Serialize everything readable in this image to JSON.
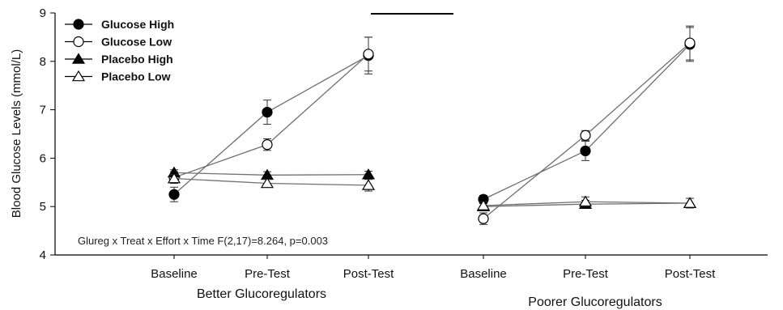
{
  "chart_data": {
    "type": "line",
    "ylabel": "Blood Glucose Levels (mmol/L)",
    "xlabel": "",
    "ylim": [
      4,
      9
    ],
    "yticks": [
      4,
      5,
      6,
      7,
      8,
      9
    ],
    "categories": [
      "Baseline",
      "Pre-Test",
      "Post-Test",
      "Baseline",
      "Pre-Test",
      "Post-Test"
    ],
    "groups": [
      {
        "label": "Better Glucoregulators",
        "categories": [
          0,
          1,
          2
        ]
      },
      {
        "label": "Poorer Glucoregulators",
        "categories": [
          3,
          4,
          5
        ]
      }
    ],
    "legend_position": "top-left",
    "annotation": "Glureg x Treat x Effort x Time F(2,17)=8.264, p=0.003",
    "series": [
      {
        "name": "Glucose High",
        "marker": "circle",
        "filled": true,
        "values": [
          5.25,
          6.95,
          8.12,
          5.15,
          6.15,
          8.35
        ],
        "errors": [
          0.15,
          0.25,
          0.38,
          0.08,
          0.2,
          0.35
        ]
      },
      {
        "name": "Glucose Low",
        "marker": "circle",
        "filled": false,
        "values": [
          5.6,
          6.28,
          8.15,
          4.75,
          6.47,
          8.38
        ],
        "errors": [
          0.12,
          0.12,
          0.35,
          0.12,
          0.1,
          0.35
        ]
      },
      {
        "name": "Placebo High",
        "marker": "triangle",
        "filled": true,
        "values": [
          5.7,
          5.65,
          5.66,
          5.0,
          5.05,
          5.07
        ],
        "errors": [
          0.06,
          0.07,
          0.07,
          0.06,
          0.08,
          0.1
        ]
      },
      {
        "name": "Placebo Low",
        "marker": "triangle",
        "filled": false,
        "values": [
          5.58,
          5.48,
          5.44,
          5.02,
          5.1,
          5.07
        ],
        "errors": [
          0.08,
          0.08,
          0.12,
          0.08,
          0.1,
          0.1
        ]
      }
    ],
    "colors": {
      "line": "#707070",
      "marker_fill": "#000000",
      "axis": "#000000"
    }
  }
}
